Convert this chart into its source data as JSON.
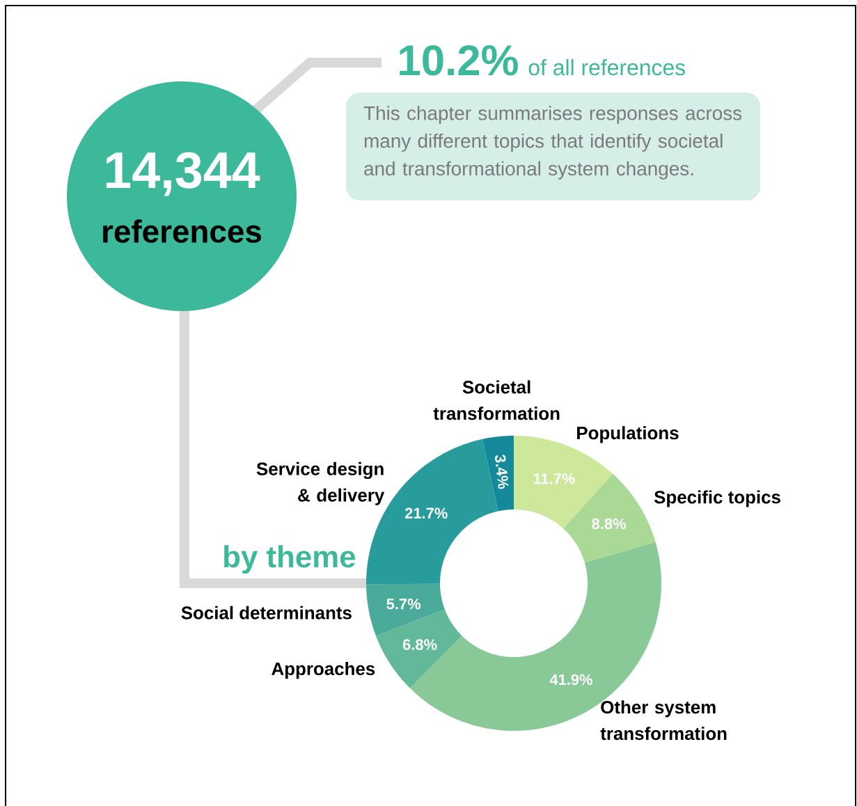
{
  "chart_data": {
    "type": "donut",
    "categories": [
      "Populations",
      "Specific topics",
      "Other system transformation",
      "Approaches",
      "Social determinants",
      "Service design & delivery",
      "Societal transformation"
    ],
    "values": [
      11.7,
      8.8,
      41.9,
      6.8,
      5.7,
      21.7,
      3.4
    ],
    "colors": [
      "#cde89b",
      "#aad996",
      "#88c997",
      "#62b99a",
      "#4aab9a",
      "#289c9d",
      "#13899a"
    ],
    "value_labels": [
      "11.7%",
      "8.8%",
      "41.9%",
      "6.8%",
      "5.7%",
      "21.7%",
      "3.4%"
    ],
    "annotations": [
      "14,344",
      "references",
      "10.2%",
      "of all references",
      "This chapter summarises responses across many different topics that identify societal and transformational system changes.",
      "by theme"
    ]
  }
}
